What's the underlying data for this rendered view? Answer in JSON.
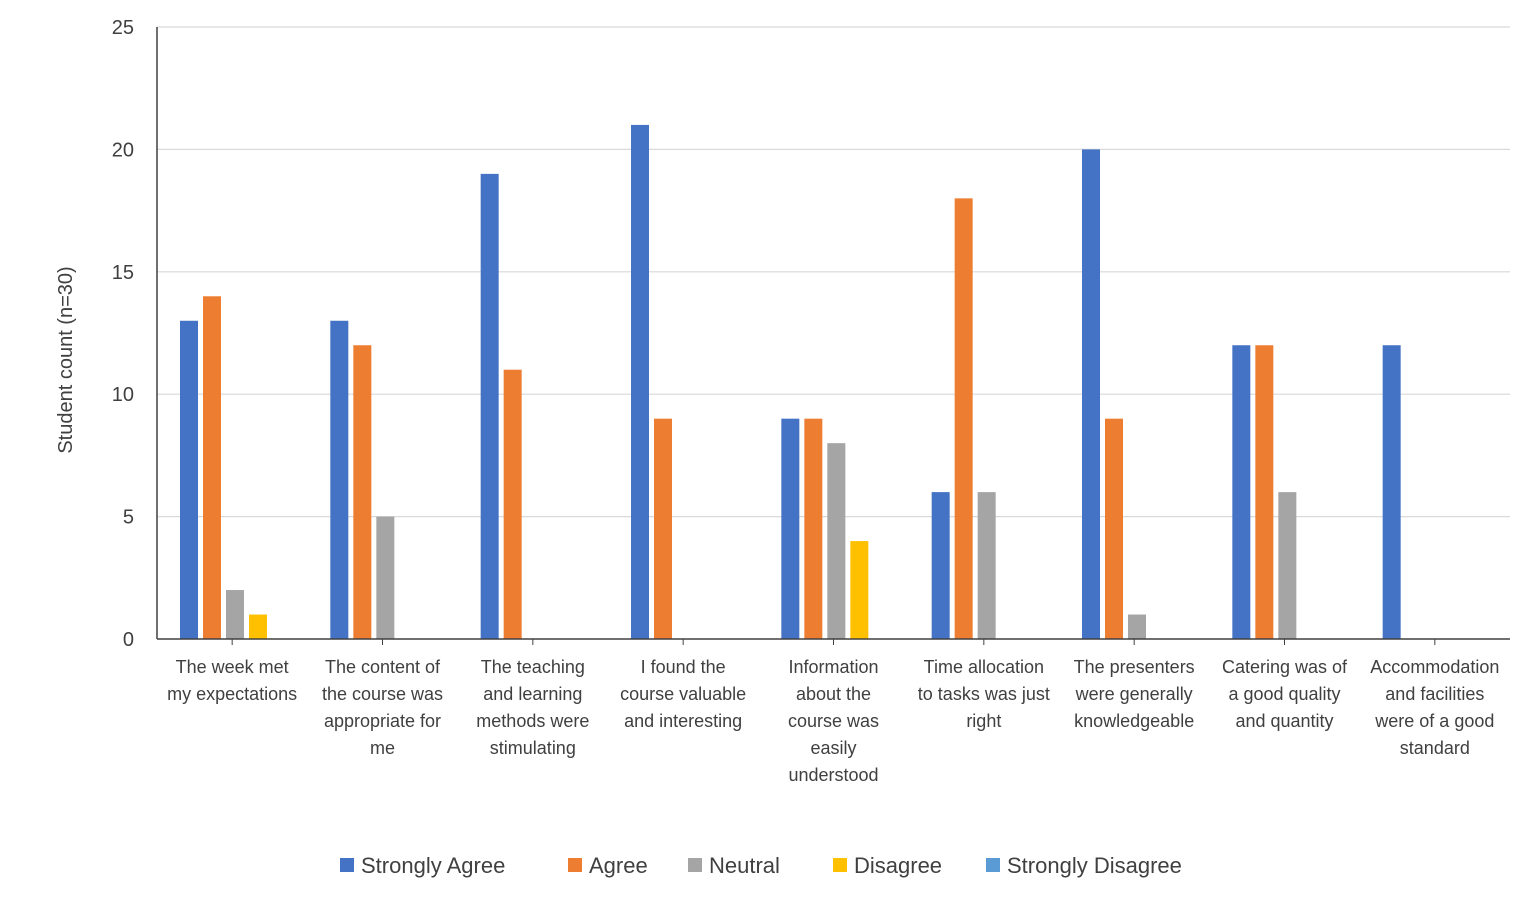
{
  "chart_data": {
    "type": "bar",
    "title": "",
    "xlabel": "",
    "ylabel": "Student count (n=30)",
    "ylim": [
      0,
      25
    ],
    "yticks": [
      0,
      5,
      10,
      15,
      20,
      25
    ],
    "grid": true,
    "legend_position": "bottom",
    "categories": [
      [
        "The week met",
        "my expectations"
      ],
      [
        "The content of",
        "the course was",
        "appropriate for",
        "me"
      ],
      [
        "The teaching",
        "and learning",
        "methods were",
        "stimulating"
      ],
      [
        "I found the",
        "course valuable",
        "and interesting"
      ],
      [
        "Information",
        "about the",
        "course was",
        "easily",
        "understood"
      ],
      [
        "Time allocation",
        "to tasks was just",
        "right"
      ],
      [
        "The presenters",
        "were generally",
        "knowledgeable"
      ],
      [
        "Catering was of",
        "a good quality",
        "and quantity"
      ],
      [
        "Accommodation",
        "and facilities",
        "were of a good",
        "standard"
      ]
    ],
    "series": [
      {
        "name": "Strongly Agree",
        "color": "#4472C4",
        "values": [
          13,
          13,
          19,
          21,
          9,
          6,
          20,
          12,
          12
        ]
      },
      {
        "name": "Agree",
        "color": "#ED7D31",
        "values": [
          14,
          12,
          11,
          9,
          9,
          18,
          9,
          12,
          0
        ]
      },
      {
        "name": "Neutral",
        "color": "#A5A5A5",
        "values": [
          2,
          5,
          0,
          0,
          8,
          6,
          1,
          6,
          0
        ]
      },
      {
        "name": "Disagree",
        "color": "#FFC000",
        "values": [
          1,
          0,
          0,
          0,
          4,
          0,
          0,
          0,
          0
        ]
      },
      {
        "name": "Strongly Disagree",
        "color": "#5B9BD5",
        "values": [
          0,
          0,
          0,
          0,
          0,
          0,
          0,
          0,
          0
        ]
      }
    ]
  }
}
